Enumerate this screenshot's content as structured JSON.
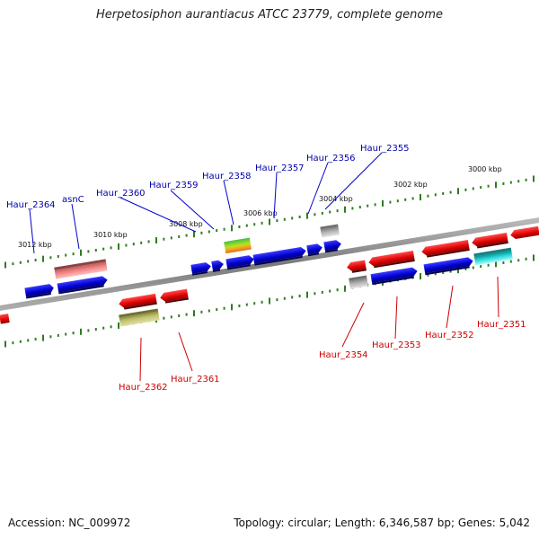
{
  "title": "Herpetosiphon aurantiacus ATCC 23779, complete genome",
  "footer": {
    "accession": "Accession: NC_009972",
    "topology": "Topology: circular; Length: 6,346,587 bp; Genes: 5,042"
  },
  "scale_ticks": [
    {
      "kbp": 3012,
      "label": "3012 kbp"
    },
    {
      "kbp": 3010,
      "label": "3010 kbp"
    },
    {
      "kbp": 3008,
      "label": "3008 kbp"
    },
    {
      "kbp": 3006,
      "label": "3006 kbp"
    },
    {
      "kbp": 3004,
      "label": "3004 kbp"
    },
    {
      "kbp": 3002,
      "label": "3002 kbp"
    },
    {
      "kbp": 3000,
      "label": "3000 kbp"
    }
  ],
  "colors": {
    "forward": "#0000cc",
    "reverse": "#cc0000",
    "backbone": "#888888",
    "tick": "#2e7d1f"
  },
  "genes_top": [
    {
      "name": "Haur_2364",
      "color": "#0000cc"
    },
    {
      "name": "asnC",
      "color": "#0000cc"
    },
    {
      "name": "Haur_2360",
      "color": "#0000cc"
    },
    {
      "name": "Haur_2359",
      "color": "#0000cc"
    },
    {
      "name": "Haur_2358",
      "color": "#0000cc"
    },
    {
      "name": "Haur_2357",
      "color": "#0000cc"
    },
    {
      "name": "Haur_2356",
      "color": "#0000cc"
    },
    {
      "name": "Haur_2355",
      "color": "#0000cc"
    }
  ],
  "genes_bottom": [
    {
      "name": "Haur_2362",
      "color": "#cc0000"
    },
    {
      "name": "Haur_2361",
      "color": "#cc0000"
    },
    {
      "name": "Haur_2354",
      "color": "#cc0000"
    },
    {
      "name": "Haur_2353",
      "color": "#cc0000"
    },
    {
      "name": "Haur_2352",
      "color": "#cc0000"
    },
    {
      "name": "Haur_2351",
      "color": "#cc0000"
    }
  ]
}
